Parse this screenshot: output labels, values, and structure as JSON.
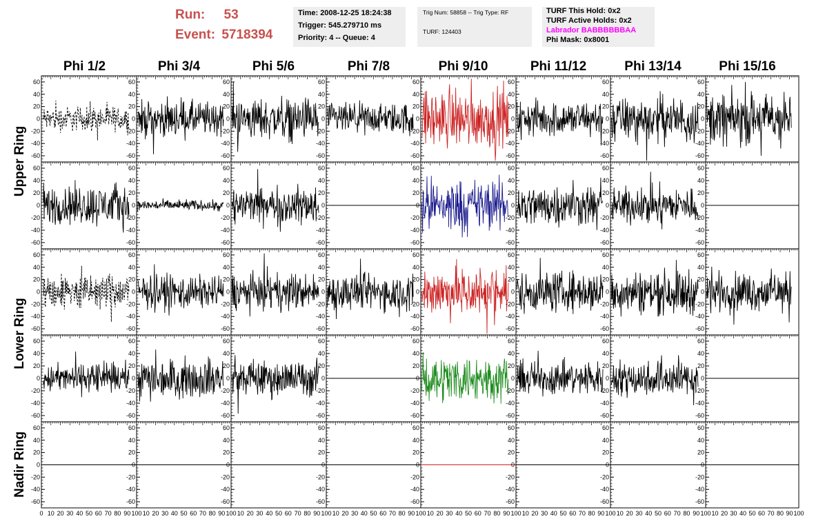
{
  "header": {
    "run_label": "Run:",
    "run_value": "53",
    "event_label": "Event:",
    "event_value": "5718394",
    "time": "Time: 2008-12-25 18:24:38",
    "trigger": "Trigger: 545.279710 ms",
    "priority": "Priority: 4 -- Queue: 4",
    "trig_num": "Trig Num: 58858 -- Trig Type: RF",
    "turf": "TURF: 124403",
    "turf_this_hold": "TURF This Hold: 0x2",
    "turf_active_holds": "TURF Active Holds: 0x2",
    "labrador": "Labrador BABBBBBBAA",
    "phi_mask": "Phi Mask: 0x8001",
    "labrador_color": "#ff00ff",
    "run_color": "#c8504f"
  },
  "chart_data": {
    "type": "line",
    "columns": [
      "Phi 1/2",
      "Phi 3/4",
      "Phi 5/6",
      "Phi 7/8",
      "Phi 9/10",
      "Phi 11/12",
      "Phi 13/14",
      "Phi 15/16"
    ],
    "ring_labels": [
      "Upper Ring",
      "Lower Ring",
      "Nadir Ring"
    ],
    "xlim": [
      0,
      100
    ],
    "ylim": [
      -70,
      70
    ],
    "x_ticks": [
      0,
      10,
      20,
      30,
      40,
      50,
      60,
      70,
      80,
      90,
      100
    ],
    "x_tick_labels_first": "0 10 20 30 40 50 60 70 80 90 100",
    "x_tick_labels": "10 20 30 40 50 60 70 80 90 100",
    "y_ticks": [
      -60,
      -40,
      -20,
      0,
      20,
      40,
      60
    ],
    "y_tick_labels": [
      "-60",
      "-40",
      "-20",
      "0",
      "20",
      "40",
      "60"
    ],
    "colors": {
      "red": "#cc2222",
      "blue": "#1a1a8c",
      "green": "#1f8c1f",
      "black": "#000000"
    },
    "panels": [
      [
        "dashed:10",
        "noise:14",
        "noise:16",
        "noise:12",
        "red:22",
        "noise:14",
        "noise:17",
        "noise:20"
      ],
      [
        "noise:16",
        "noise:4",
        "noise:14",
        "flat",
        "blue:20",
        "noise:16",
        "noise:14",
        "flat"
      ],
      [
        "dashed:14",
        "noise:13",
        "noise:14",
        "noise:14",
        "red:20",
        "noise:16",
        "noise:17",
        "noise:15"
      ],
      [
        "noise:11",
        "noise:15",
        "noise:14",
        "flat",
        "green:18",
        "noise:13",
        "noise:14",
        "flat"
      ],
      [
        "flat",
        "flat",
        "flat",
        "flat",
        "flatred",
        "flat",
        "flat",
        "flat"
      ]
    ]
  }
}
